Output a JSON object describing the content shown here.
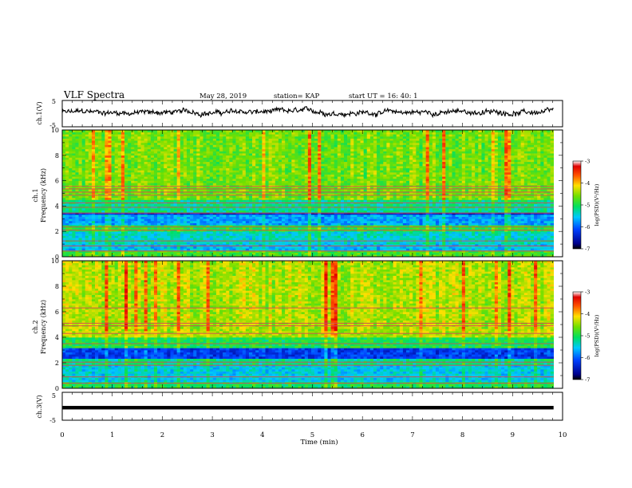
{
  "header": {
    "title": "VLF Spectra",
    "date": "May 28, 2019",
    "station": "station= KAP",
    "start": "start  UT  =   16: 40: 1"
  },
  "chart_data": [
    {
      "type": "line",
      "panel": "ch1",
      "ylabel": "ch.1(V)",
      "ylim": [
        -5,
        5
      ],
      "ticks_y": [
        "5",
        "-5"
      ],
      "xlim": [
        0,
        10
      ],
      "series": [
        {
          "x_range": [
            0,
            9.82
          ],
          "mean": 0.5,
          "noise_amp": 1.6,
          "color": "#000000"
        }
      ]
    },
    {
      "type": "heatmap",
      "panel": "ch1-spectrogram",
      "ylabel": "ch.1",
      "ylabel2": "Frequency (kHz)",
      "ylim": [
        0,
        10
      ],
      "ticks_y": [
        "0",
        "2",
        "4",
        "6",
        "8",
        "10"
      ],
      "xlim": [
        0,
        9.82
      ],
      "colorbar": {
        "label": "log(PSD)(V²/Hz)",
        "range": [
          -7,
          -3
        ],
        "ticks": [
          "-3",
          "-4",
          "-5",
          "-6",
          "-7"
        ]
      },
      "lines_khz": [
        0.45,
        0.85,
        1.25,
        2.1,
        2.35,
        3.45,
        3.9,
        4.25,
        4.85,
        5.1,
        5.35,
        5.55
      ],
      "bands": [
        {
          "from": 0,
          "to": 0.5,
          "level": -4.8
        },
        {
          "from": 0.5,
          "to": 1.0,
          "level": -5.6
        },
        {
          "from": 1.0,
          "to": 2.0,
          "level": -5.4
        },
        {
          "from": 2.0,
          "to": 2.5,
          "level": -4.9
        },
        {
          "from": 2.5,
          "to": 3.3,
          "level": -5.7
        },
        {
          "from": 3.3,
          "to": 3.5,
          "level": -6.4
        },
        {
          "from": 3.5,
          "to": 4.5,
          "level": -5.2
        },
        {
          "from": 4.5,
          "to": 10,
          "level": -4.6
        }
      ]
    },
    {
      "type": "heatmap",
      "panel": "ch2-spectrogram",
      "ylabel": "ch.2",
      "ylabel2": "Frequency (kHz)",
      "ylim": [
        0,
        10
      ],
      "ticks_y": [
        "0",
        "2",
        "4",
        "6",
        "8",
        "10"
      ],
      "xlim": [
        0,
        9.82
      ],
      "colorbar": {
        "label": "log(PSD)(V²/Hz)",
        "range": [
          -7,
          -3
        ],
        "ticks": [
          "-3",
          "-4",
          "-5",
          "-6",
          "-7"
        ]
      },
      "lines_khz": [
        0.4,
        0.9,
        1.8,
        2.05,
        3.5,
        4.3,
        4.9,
        5.1,
        6.3
      ],
      "bands": [
        {
          "from": 0,
          "to": 0.5,
          "level": -5.0
        },
        {
          "from": 0.5,
          "to": 1.8,
          "level": -5.5
        },
        {
          "from": 1.8,
          "to": 2.3,
          "level": -5.2
        },
        {
          "from": 2.3,
          "to": 3.2,
          "level": -6.2
        },
        {
          "from": 3.2,
          "to": 4.0,
          "level": -5.0
        },
        {
          "from": 4.0,
          "to": 10,
          "level": -4.4
        }
      ]
    },
    {
      "type": "line",
      "panel": "ch3",
      "ylabel": "ch.3(V)",
      "ylim": [
        -5,
        5
      ],
      "ticks_y": [
        "5",
        "-5"
      ],
      "xlim": [
        0,
        10
      ],
      "xlabel": "Time (min)",
      "ticks_x": [
        "0",
        "1",
        "2",
        "3",
        "4",
        "5",
        "6",
        "7",
        "8",
        "9",
        "10"
      ],
      "series": [
        {
          "x_range": [
            0,
            9.82
          ],
          "mean": -0.5,
          "noise_amp": 0.15,
          "color": "#000000"
        }
      ]
    }
  ]
}
